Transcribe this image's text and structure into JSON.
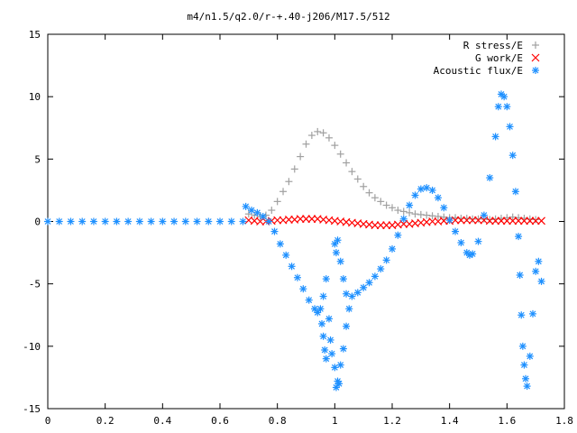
{
  "chart_data": {
    "type": "scatter",
    "title": "m4/n1.5/q2.0/r-+.40-j206/M17.5/512",
    "xlabel": "",
    "ylabel": "",
    "xlim": [
      0,
      1.8
    ],
    "ylim": [
      -15,
      15
    ],
    "xticks": [
      0,
      0.2,
      0.4,
      0.6,
      0.8,
      1,
      1.2,
      1.4,
      1.6,
      1.8
    ],
    "xtick_labels": [
      "0",
      "0.2",
      "0.4",
      "0.6",
      "0.8",
      "1",
      "1.2",
      "1.4",
      "1.6",
      "1.8"
    ],
    "yticks": [
      -15,
      -10,
      -5,
      0,
      5,
      10,
      15
    ],
    "ytick_labels": [
      "-15",
      "-10",
      "-5",
      "0",
      "5",
      "10",
      "15"
    ],
    "grid": false,
    "legend_position": "top-right",
    "series": [
      {
        "name": "R stress/E",
        "color": "#a0a0a0",
        "marker": "plus",
        "points": [
          [
            0.7,
            0.6
          ],
          [
            0.72,
            0.5
          ],
          [
            0.74,
            0.4
          ],
          [
            0.76,
            0.5
          ],
          [
            0.78,
            0.9
          ],
          [
            0.8,
            1.6
          ],
          [
            0.82,
            2.4
          ],
          [
            0.84,
            3.2
          ],
          [
            0.86,
            4.2
          ],
          [
            0.88,
            5.2
          ],
          [
            0.9,
            6.2
          ],
          [
            0.92,
            6.9
          ],
          [
            0.94,
            7.2
          ],
          [
            0.96,
            7.1
          ],
          [
            0.98,
            6.7
          ],
          [
            1.0,
            6.1
          ],
          [
            1.02,
            5.4
          ],
          [
            1.04,
            4.7
          ],
          [
            1.06,
            4.0
          ],
          [
            1.08,
            3.4
          ],
          [
            1.1,
            2.8
          ],
          [
            1.12,
            2.3
          ],
          [
            1.14,
            1.9
          ],
          [
            1.16,
            1.6
          ],
          [
            1.18,
            1.3
          ],
          [
            1.2,
            1.1
          ],
          [
            1.22,
            0.9
          ],
          [
            1.24,
            0.8
          ],
          [
            1.26,
            0.7
          ],
          [
            1.28,
            0.6
          ],
          [
            1.3,
            0.55
          ],
          [
            1.32,
            0.5
          ],
          [
            1.34,
            0.45
          ],
          [
            1.36,
            0.4
          ],
          [
            1.38,
            0.35
          ],
          [
            1.4,
            0.3
          ],
          [
            1.42,
            0.3
          ],
          [
            1.44,
            0.25
          ],
          [
            1.46,
            0.25
          ],
          [
            1.48,
            0.2
          ],
          [
            1.5,
            0.2
          ],
          [
            1.52,
            0.2
          ],
          [
            1.54,
            0.15
          ],
          [
            1.56,
            0.2
          ],
          [
            1.58,
            0.25
          ],
          [
            1.6,
            0.3
          ],
          [
            1.62,
            0.35
          ],
          [
            1.64,
            0.3
          ],
          [
            1.66,
            0.25
          ],
          [
            1.68,
            0.2
          ],
          [
            1.7,
            0.15
          ]
        ]
      },
      {
        "name": "G work/E",
        "color": "#ff0000",
        "marker": "cross",
        "points": [
          [
            0.7,
            0.1
          ],
          [
            0.72,
            0.05
          ],
          [
            0.74,
            0.0
          ],
          [
            0.76,
            0.0
          ],
          [
            0.78,
            0.05
          ],
          [
            0.8,
            0.1
          ],
          [
            0.82,
            0.1
          ],
          [
            0.84,
            0.15
          ],
          [
            0.86,
            0.15
          ],
          [
            0.88,
            0.2
          ],
          [
            0.9,
            0.2
          ],
          [
            0.92,
            0.2
          ],
          [
            0.94,
            0.2
          ],
          [
            0.96,
            0.15
          ],
          [
            0.98,
            0.1
          ],
          [
            1.0,
            0.05
          ],
          [
            1.02,
            0.0
          ],
          [
            1.04,
            -0.05
          ],
          [
            1.06,
            -0.1
          ],
          [
            1.08,
            -0.15
          ],
          [
            1.1,
            -0.2
          ],
          [
            1.12,
            -0.25
          ],
          [
            1.14,
            -0.3
          ],
          [
            1.16,
            -0.3
          ],
          [
            1.18,
            -0.3
          ],
          [
            1.2,
            -0.3
          ],
          [
            1.22,
            -0.25
          ],
          [
            1.24,
            -0.2
          ],
          [
            1.26,
            -0.2
          ],
          [
            1.28,
            -0.15
          ],
          [
            1.3,
            -0.1
          ],
          [
            1.32,
            -0.05
          ],
          [
            1.34,
            0.0
          ],
          [
            1.36,
            0.0
          ],
          [
            1.38,
            0.05
          ],
          [
            1.4,
            0.05
          ],
          [
            1.42,
            0.1
          ],
          [
            1.44,
            0.1
          ],
          [
            1.46,
            0.1
          ],
          [
            1.48,
            0.1
          ],
          [
            1.5,
            0.1
          ],
          [
            1.52,
            0.1
          ],
          [
            1.54,
            0.05
          ],
          [
            1.56,
            0.05
          ],
          [
            1.58,
            0.05
          ],
          [
            1.6,
            0.05
          ],
          [
            1.62,
            0.05
          ],
          [
            1.64,
            0.05
          ],
          [
            1.66,
            0.05
          ],
          [
            1.68,
            0.05
          ],
          [
            1.7,
            0.05
          ],
          [
            1.72,
            0.05
          ]
        ]
      },
      {
        "name": "Acoustic flux/E",
        "color": "#1e90ff",
        "marker": "star",
        "points": [
          [
            0.0,
            0.0
          ],
          [
            0.04,
            0.0
          ],
          [
            0.08,
            0.0
          ],
          [
            0.12,
            0.0
          ],
          [
            0.16,
            0.0
          ],
          [
            0.2,
            0.0
          ],
          [
            0.24,
            0.0
          ],
          [
            0.28,
            0.0
          ],
          [
            0.32,
            0.0
          ],
          [
            0.36,
            0.0
          ],
          [
            0.4,
            0.0
          ],
          [
            0.44,
            0.0
          ],
          [
            0.48,
            0.0
          ],
          [
            0.52,
            0.0
          ],
          [
            0.56,
            0.0
          ],
          [
            0.6,
            0.0
          ],
          [
            0.64,
            0.0
          ],
          [
            0.68,
            0.0
          ],
          [
            0.69,
            1.2
          ],
          [
            0.71,
            0.9
          ],
          [
            0.73,
            0.7
          ],
          [
            0.75,
            0.4
          ],
          [
            0.77,
            0.0
          ],
          [
            0.79,
            -0.8
          ],
          [
            0.81,
            -1.8
          ],
          [
            0.83,
            -2.7
          ],
          [
            0.85,
            -3.6
          ],
          [
            0.87,
            -4.5
          ],
          [
            0.89,
            -5.4
          ],
          [
            0.91,
            -6.3
          ],
          [
            0.93,
            -7.0
          ],
          [
            0.94,
            -7.3
          ],
          [
            0.95,
            -7.0
          ],
          [
            0.96,
            -6.0
          ],
          [
            0.97,
            -4.6
          ],
          [
            0.955,
            -8.2
          ],
          [
            0.96,
            -9.2
          ],
          [
            0.965,
            -10.3
          ],
          [
            0.97,
            -11.0
          ],
          [
            0.98,
            -7.8
          ],
          [
            0.985,
            -9.5
          ],
          [
            0.99,
            -10.6
          ],
          [
            1.0,
            -11.7
          ],
          [
            1.01,
            -12.8
          ],
          [
            1.005,
            -13.3
          ],
          [
            1.015,
            -13.0
          ],
          [
            1.02,
            -11.5
          ],
          [
            1.03,
            -10.2
          ],
          [
            1.04,
            -8.4
          ],
          [
            1.05,
            -7.0
          ],
          [
            1.0,
            -1.8
          ],
          [
            1.005,
            -2.5
          ],
          [
            1.01,
            -1.5
          ],
          [
            1.02,
            -3.2
          ],
          [
            1.03,
            -4.6
          ],
          [
            1.04,
            -5.8
          ],
          [
            1.06,
            -6.0
          ],
          [
            1.08,
            -5.7
          ],
          [
            1.1,
            -5.3
          ],
          [
            1.12,
            -4.9
          ],
          [
            1.14,
            -4.4
          ],
          [
            1.16,
            -3.8
          ],
          [
            1.18,
            -3.1
          ],
          [
            1.2,
            -2.2
          ],
          [
            1.22,
            -1.1
          ],
          [
            1.24,
            0.2
          ],
          [
            1.26,
            1.3
          ],
          [
            1.28,
            2.1
          ],
          [
            1.3,
            2.6
          ],
          [
            1.32,
            2.7
          ],
          [
            1.34,
            2.5
          ],
          [
            1.36,
            1.9
          ],
          [
            1.38,
            1.1
          ],
          [
            1.4,
            0.1
          ],
          [
            1.42,
            -0.8
          ],
          [
            1.44,
            -1.7
          ],
          [
            1.46,
            -2.5
          ],
          [
            1.47,
            -2.7
          ],
          [
            1.48,
            -2.6
          ],
          [
            1.5,
            -1.6
          ],
          [
            1.52,
            0.5
          ],
          [
            1.54,
            3.5
          ],
          [
            1.56,
            6.8
          ],
          [
            1.57,
            9.2
          ],
          [
            1.58,
            10.2
          ],
          [
            1.59,
            10.0
          ],
          [
            1.6,
            9.2
          ],
          [
            1.61,
            7.6
          ],
          [
            1.62,
            5.3
          ],
          [
            1.63,
            2.4
          ],
          [
            1.64,
            -1.2
          ],
          [
            1.645,
            -4.3
          ],
          [
            1.65,
            -7.5
          ],
          [
            1.655,
            -10.0
          ],
          [
            1.66,
            -11.5
          ],
          [
            1.665,
            -12.6
          ],
          [
            1.67,
            -13.2
          ],
          [
            1.68,
            -10.8
          ],
          [
            1.69,
            -7.4
          ],
          [
            1.7,
            -4.0
          ],
          [
            1.71,
            -3.2
          ],
          [
            1.72,
            -4.8
          ]
        ]
      }
    ]
  }
}
